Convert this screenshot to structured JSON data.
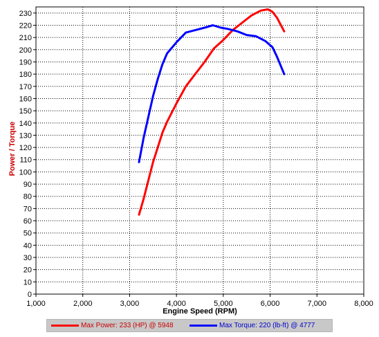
{
  "chart_data": {
    "type": "line",
    "title": "",
    "xlabel": "Engine Speed (RPM)",
    "ylabel": "Power / Torque",
    "xlim": [
      1000,
      8000
    ],
    "ylim": [
      0,
      235
    ],
    "x_ticks": [
      1000,
      2000,
      3000,
      4000,
      5000,
      6000,
      7000,
      8000
    ],
    "x_tick_labels": [
      "1,000",
      "2,000",
      "3,000",
      "4,000",
      "5,000",
      "6,000",
      "7,000",
      "8,000"
    ],
    "y_ticks": [
      0,
      10,
      20,
      30,
      40,
      50,
      60,
      70,
      80,
      90,
      100,
      110,
      120,
      130,
      140,
      150,
      160,
      170,
      180,
      190,
      200,
      210,
      220,
      230
    ],
    "grid": true,
    "legend_position": "bottom",
    "series": [
      {
        "name": "Power",
        "legend": "Max Power: 233 (HP) @ 5948",
        "color": "#ff0000",
        "x": [
          3200,
          3300,
          3400,
          3500,
          3600,
          3700,
          3800,
          4000,
          4200,
          4400,
          4600,
          4800,
          5000,
          5200,
          5400,
          5600,
          5700,
          5800,
          5948,
          6050,
          6150,
          6300
        ],
        "y": [
          65,
          78,
          93,
          108,
          120,
          132,
          141,
          156,
          170,
          180,
          190,
          201,
          208,
          216,
          222,
          228,
          230,
          232,
          233,
          231,
          226,
          215
        ]
      },
      {
        "name": "Torque",
        "legend": "Max Torque: 220 (lb-ft) @ 4777",
        "color": "#0000ff",
        "x": [
          3200,
          3300,
          3400,
          3500,
          3600,
          3700,
          3800,
          4000,
          4200,
          4400,
          4600,
          4777,
          4950,
          5100,
          5300,
          5500,
          5700,
          5900,
          6050,
          6150,
          6300
        ],
        "y": [
          108,
          128,
          145,
          162,
          176,
          188,
          197,
          206,
          214,
          216,
          218,
          220,
          218,
          217,
          215,
          212,
          211,
          207,
          202,
          194,
          180
        ]
      }
    ]
  }
}
